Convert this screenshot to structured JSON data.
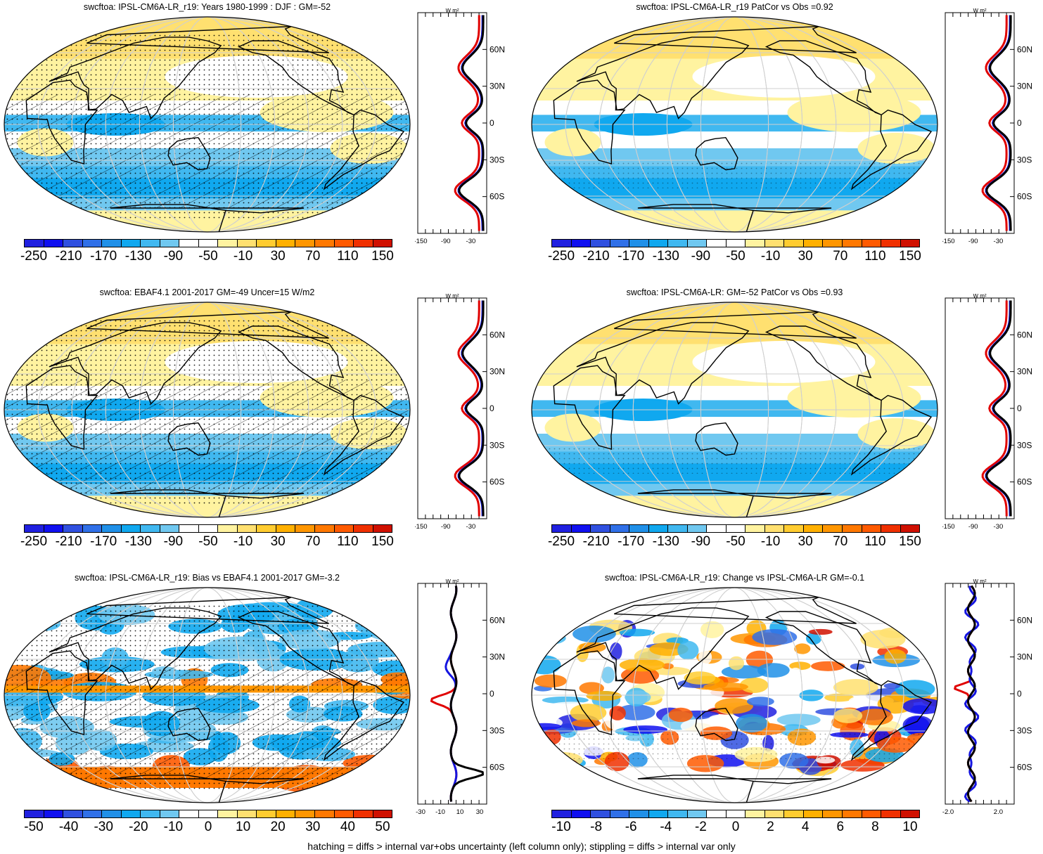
{
  "footer": "hatching = diffs > internal var+obs uncertainty (left column only); stippling = diffs > internal var only",
  "palettes": {
    "diverging": [
      "#2020e0",
      "#1010f0",
      "#3050e0",
      "#3070e8",
      "#2090e8",
      "#10a8ef",
      "#40b8f0",
      "#70c8f0",
      "#ffffff",
      "#ffffff",
      "#fff3a0",
      "#ffe070",
      "#ffcc30",
      "#ffb000",
      "#ff9600",
      "#ff7800",
      "#ff5a00",
      "#f03000",
      "#d01000"
    ]
  },
  "profile_unit": "W m²",
  "lat_ticks": [
    "60N",
    "30N",
    "0",
    "30S",
    "60S"
  ],
  "panels": [
    {
      "title": "swcftoa: IPSL-CM6A-LR_r19: Years 1980-1999 : DJF : GM=-52",
      "map_style": "mean",
      "hatching": true,
      "stippling": "dense",
      "colorbar_labels": [
        "-250",
        "-210",
        "-170",
        "-130",
        "-90",
        "-50",
        "-10",
        "30",
        "70",
        "110",
        "150"
      ],
      "profile_xticks": [
        "-150",
        "-90",
        "-30"
      ],
      "profile_type": "mean"
    },
    {
      "title": "swcftoa: IPSL-CM6A-LR_r19 PatCor vs Obs =0.92",
      "map_style": "mean",
      "hatching": false,
      "stippling": "sparse",
      "colorbar_labels": [
        "-250",
        "-210",
        "-170",
        "-130",
        "-90",
        "-50",
        "-10",
        "30",
        "70",
        "110",
        "150"
      ],
      "profile_xticks": [
        "-150",
        "-90",
        "-30"
      ],
      "profile_type": "mean"
    },
    {
      "title": "swcftoa: EBAF4.1 2001-2017 GM=-49 Uncer=15 W/m2",
      "map_style": "mean",
      "hatching": true,
      "stippling": "dense",
      "colorbar_labels": [
        "-250",
        "-210",
        "-170",
        "-130",
        "-90",
        "-50",
        "-10",
        "30",
        "70",
        "110",
        "150"
      ],
      "profile_xticks": [
        "-150",
        "-90",
        "-30"
      ],
      "profile_type": "mean"
    },
    {
      "title": "swcftoa: IPSL-CM6A-LR: GM=-52 PatCor vs Obs =0.93",
      "map_style": "mean",
      "hatching": false,
      "stippling": "sparse",
      "colorbar_labels": [
        "-250",
        "-210",
        "-170",
        "-130",
        "-90",
        "-50",
        "-10",
        "30",
        "70",
        "110",
        "150"
      ],
      "profile_xticks": [
        "-150",
        "-90",
        "-30"
      ],
      "profile_type": "mean"
    },
    {
      "title": "swcftoa: IPSL-CM6A-LR_r19: Bias vs EBAF4.1 2001-2017 GM=-3.2",
      "map_style": "bias",
      "hatching": true,
      "stippling": "dense",
      "colorbar_labels": [
        "-50",
        "-40",
        "-30",
        "-20",
        "-10",
        "0",
        "10",
        "20",
        "30",
        "40",
        "50"
      ],
      "profile_xticks": [
        "-30",
        "-10",
        "10",
        "30"
      ],
      "profile_type": "bias"
    },
    {
      "title": "swcftoa: IPSL-CM6A-LR_r19: Change vs IPSL-CM6A-LR GM=-0.1",
      "map_style": "change",
      "hatching": false,
      "stippling": "sparse",
      "colorbar_labels": [
        "-10",
        "-8",
        "-6",
        "-4",
        "-2",
        "0",
        "2",
        "4",
        "6",
        "8",
        "10"
      ],
      "profile_xticks": [
        "-2.0",
        "2.0"
      ],
      "profile_type": "change"
    }
  ]
}
